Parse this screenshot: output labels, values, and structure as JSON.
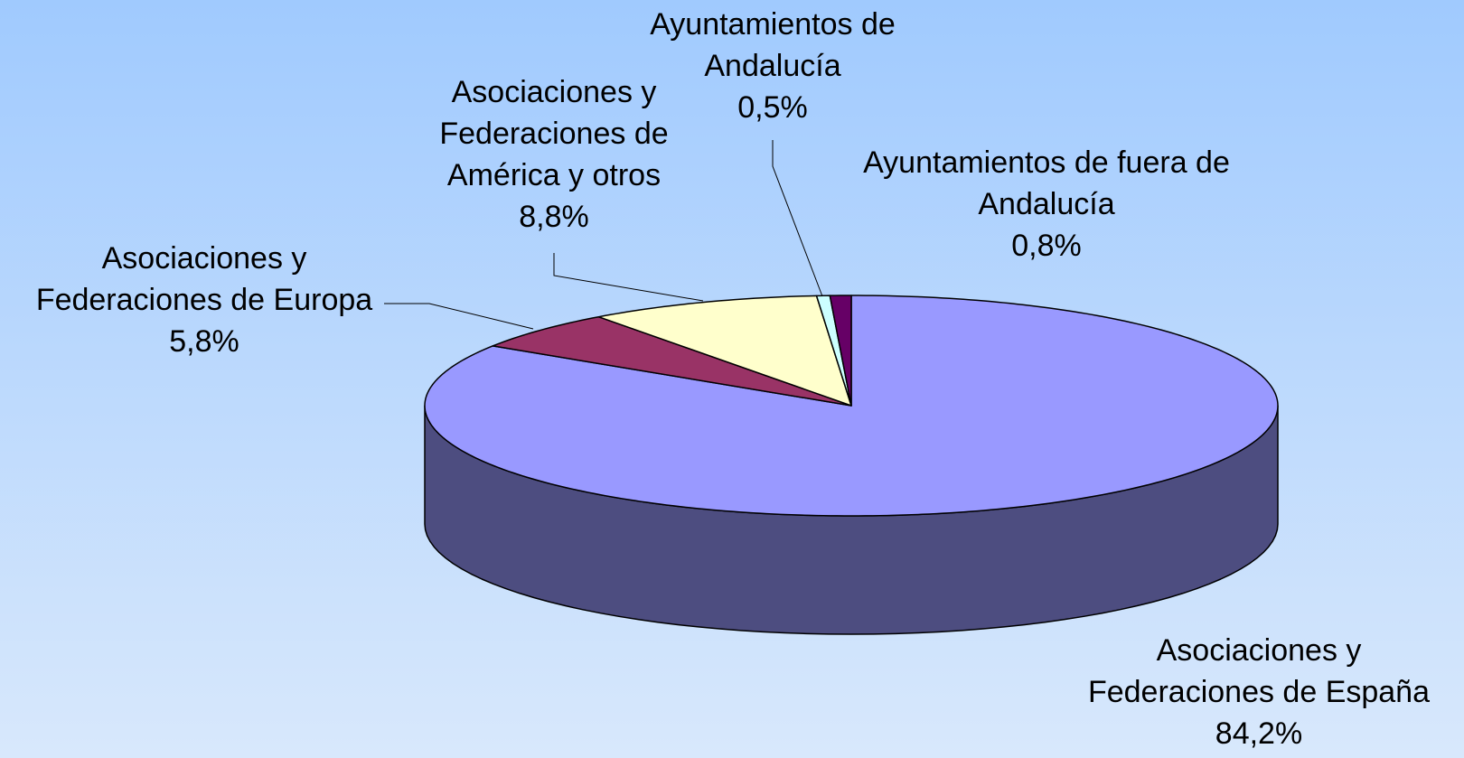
{
  "chart_data": {
    "type": "pie",
    "categories": [
      "Asociaciones y Federaciones de España",
      "Asociaciones y Federaciones de Europa",
      "Asociaciones y Federaciones de América y otros",
      "Ayuntamientos de Andalucía",
      "Ayuntamientos de fuera de Andalucía"
    ],
    "values": [
      84.2,
      5.8,
      8.8,
      0.5,
      0.8
    ],
    "value_labels": [
      "84,2%",
      "5,8%",
      "8,8%",
      "0,5%",
      "0,8%"
    ],
    "colors": [
      "#9999ff",
      "#993366",
      "#ffffcc",
      "#ccffff",
      "#660066"
    ]
  }
}
